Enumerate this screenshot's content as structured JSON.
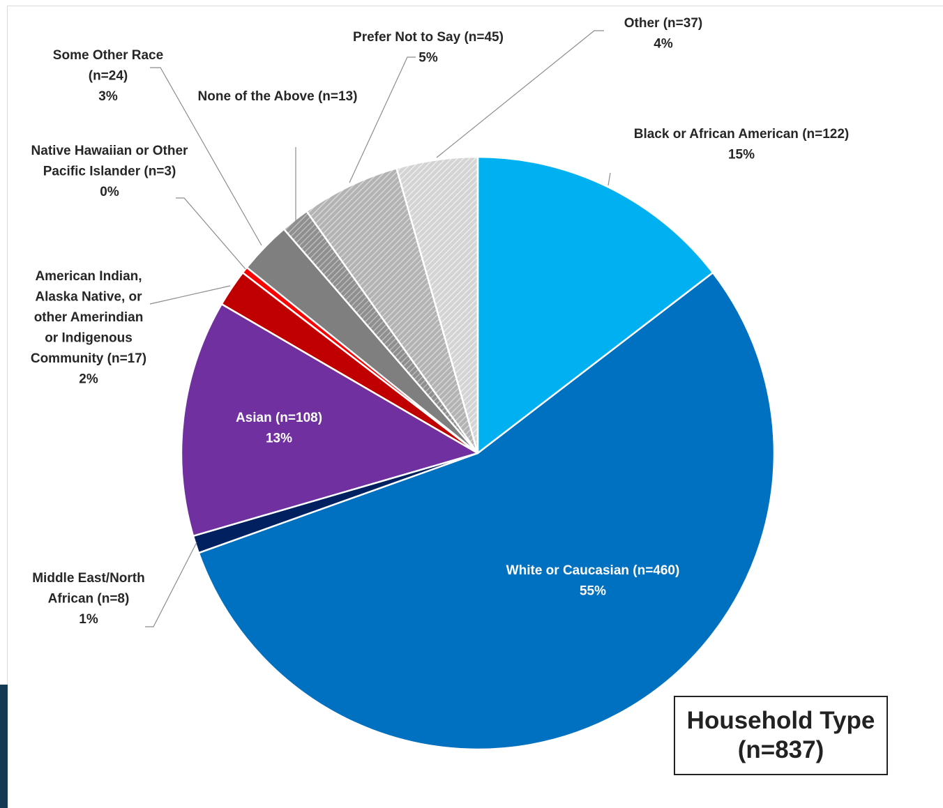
{
  "chart_data": {
    "type": "pie",
    "start_angle_deg": 0,
    "direction": "clockwise",
    "box_title": [
      "Household Type",
      "(n=837)"
    ],
    "slices": [
      {
        "label": [
          "Black or African American (n=122)"
        ],
        "count": 122,
        "percent": "15%",
        "color": "#00b0f0",
        "pattern": null
      },
      {
        "label": [
          "White or Caucasian (n=460)"
        ],
        "count": 460,
        "percent": "55%",
        "color": "#0070c0",
        "pattern": null
      },
      {
        "label": [
          "Middle East/North",
          "African (n=8)"
        ],
        "count": 8,
        "percent": "1%",
        "color": "#002060",
        "pattern": null
      },
      {
        "label": [
          "Asian (n=108)"
        ],
        "count": 108,
        "percent": "13%",
        "color": "#7030a0",
        "pattern": null
      },
      {
        "label": [
          "American Indian,",
          "Alaska Native, or",
          "other Amerindian",
          "or Indigenous",
          "Community (n=17)"
        ],
        "count": 17,
        "percent": "2%",
        "color": "#c00000",
        "pattern": null
      },
      {
        "label": [
          "Native Hawaiian or Other",
          "Pacific Islander (n=3)"
        ],
        "count": 3,
        "percent": "0%",
        "color": "#ff0000",
        "pattern": null
      },
      {
        "label": [
          "Some Other Race",
          "(n=24)"
        ],
        "count": 24,
        "percent": "3%",
        "color": "#7f7f7f",
        "pattern": null
      },
      {
        "label": [
          "None of the Above (n=13)"
        ],
        "count": 13,
        "percent": "",
        "color": "#a6a6a6",
        "pattern": "dark-stripe"
      },
      {
        "label": [
          "Prefer Not to Say (n=45)"
        ],
        "count": 45,
        "percent": "5%",
        "color": "#bfbfbf",
        "pattern": "mid-stripe"
      },
      {
        "label": [
          "Other (n=37)"
        ],
        "count": 37,
        "percent": "4%",
        "color": "#d9d9d9",
        "pattern": "light-stripe"
      }
    ]
  }
}
